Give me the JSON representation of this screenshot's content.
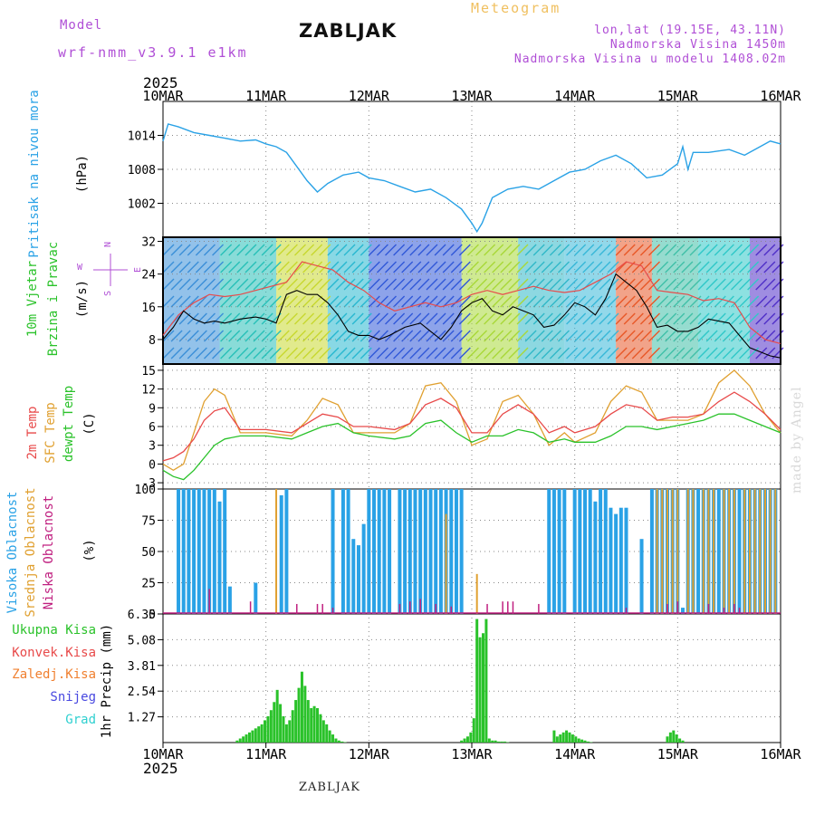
{
  "header": {
    "model_label": "Model",
    "model_name": "wrf-nmm_v3.9.1 e1km",
    "station": "ZABLJAK",
    "product": "Meteogram",
    "coords": "lon,lat (19.15E, 43.11N)",
    "elevation": "Nadmorska Visina 1450m",
    "model_elevation": "Nadmorska Visina u modelu 1408.02m"
  },
  "credit": "made by Angel",
  "footer_station": "ZABLJAK",
  "time_axis": {
    "year": "2025",
    "labels": [
      "10MAR",
      "11MAR",
      "12MAR",
      "13MAR",
      "14MAR",
      "15MAR",
      "16MAR"
    ]
  },
  "colors": {
    "pressure": "#2aa2e6",
    "wind_speed": "#000000",
    "wind_gust": "#e84a4a",
    "t2m": "#e84a4a",
    "tsfc": "#e0a030",
    "dewpt": "#2ac22a",
    "cloud_high": "#2aa2e6",
    "cloud_mid": "#e0a030",
    "cloud_low": "#c02080",
    "precip_total": "#2ac22a",
    "precip_conv": "#e84a4a",
    "precip_frz": "#f08030",
    "snow": "#4848e0",
    "hail": "#30d0d0",
    "legend_purple": "#b04fd6"
  },
  "chart_data": [
    {
      "type": "line",
      "title": "",
      "ylabel": [
        "Pritisak na nivou mora",
        "(hPa)"
      ],
      "yticks": [
        1002,
        1008,
        1014
      ],
      "ylim": [
        996,
        1020
      ],
      "grid": true,
      "series": [
        {
          "name": "Pritisak na nivou mora",
          "x": [
            0,
            0.05,
            0.15,
            0.3,
            0.45,
            0.6,
            0.75,
            0.9,
            1.0,
            1.1,
            1.2,
            1.3,
            1.4,
            1.5,
            1.6,
            1.75,
            1.9,
            2.0,
            2.15,
            2.3,
            2.45,
            2.6,
            2.75,
            2.9,
            3.0,
            3.05,
            3.1,
            3.2,
            3.35,
            3.5,
            3.65,
            3.8,
            3.95,
            4.1,
            4.25,
            4.4,
            4.55,
            4.7,
            4.85,
            5.0,
            5.05,
            5.1,
            5.15,
            5.3,
            5.5,
            5.65,
            5.8,
            5.9,
            6.0
          ],
          "values": [
            1013,
            1016,
            1015.5,
            1014.5,
            1014,
            1013.5,
            1013,
            1013.2,
            1012.5,
            1012,
            1011,
            1008.5,
            1006,
            1004,
            1005.5,
            1007,
            1007.5,
            1006.5,
            1006,
            1005,
            1004,
            1004.5,
            1003,
            1001,
            998.5,
            997,
            998.5,
            1003,
            1004.5,
            1005,
            1004.5,
            1006,
            1007.5,
            1008,
            1009.5,
            1010.5,
            1009,
            1006.5,
            1007,
            1009,
            1012,
            1008,
            1011,
            1011,
            1011.5,
            1010.5,
            1012,
            1013,
            1012.5
          ]
        }
      ]
    },
    {
      "type": "line",
      "title": "",
      "ylabel": [
        "10m Vjetar",
        "Brzina i Pravac",
        "(m/s)"
      ],
      "direction_legend": [
        "N",
        "W",
        "E",
        "S"
      ],
      "yticks": [
        8,
        16,
        24,
        32
      ],
      "ylim": [
        2,
        33
      ],
      "grid": true,
      "series": [
        {
          "name": "Brzina",
          "x": [
            0,
            0.1,
            0.2,
            0.3,
            0.4,
            0.5,
            0.6,
            0.75,
            0.9,
            1.0,
            1.1,
            1.2,
            1.3,
            1.4,
            1.5,
            1.6,
            1.7,
            1.8,
            1.9,
            2.0,
            2.1,
            2.2,
            2.35,
            2.5,
            2.6,
            2.7,
            2.8,
            2.9,
            3.0,
            3.1,
            3.2,
            3.3,
            3.4,
            3.5,
            3.6,
            3.7,
            3.8,
            3.9,
            4.0,
            4.1,
            4.2,
            4.3,
            4.4,
            4.5,
            4.6,
            4.7,
            4.8,
            4.9,
            5.0,
            5.1,
            5.2,
            5.3,
            5.4,
            5.5,
            5.6,
            5.7,
            5.8,
            5.9,
            6.0
          ],
          "values": [
            8,
            11,
            15,
            13,
            12,
            12.5,
            12,
            13,
            13.5,
            13,
            12,
            19,
            20,
            19,
            19,
            17,
            14,
            10,
            9,
            9,
            8,
            9,
            11,
            12,
            10,
            8,
            11,
            15,
            17,
            18,
            15,
            14,
            16,
            15,
            14,
            11,
            11.5,
            14,
            17,
            16,
            14,
            18,
            24,
            22,
            20,
            16,
            11,
            11.5,
            10,
            10,
            11,
            13,
            12.5,
            12,
            9,
            6,
            5,
            4,
            3.5
          ]
        },
        {
          "name": "Udari",
          "x": [
            0,
            0.15,
            0.3,
            0.45,
            0.6,
            0.75,
            0.9,
            1.05,
            1.2,
            1.35,
            1.5,
            1.65,
            1.8,
            1.95,
            2.1,
            2.25,
            2.4,
            2.55,
            2.7,
            2.85,
            3.0,
            3.15,
            3.3,
            3.45,
            3.6,
            3.75,
            3.9,
            4.05,
            4.2,
            4.35,
            4.5,
            4.65,
            4.8,
            4.95,
            5.1,
            5.25,
            5.4,
            5.55,
            5.7,
            5.85,
            6.0
          ],
          "values": [
            9,
            14,
            17,
            19,
            18.5,
            19,
            20,
            21,
            22,
            27,
            26,
            25,
            22,
            20,
            17,
            15,
            16,
            17,
            16,
            17,
            19,
            20,
            19,
            20,
            21,
            20,
            19.5,
            20,
            22,
            24,
            27,
            26,
            20,
            19.5,
            19,
            17.5,
            18,
            17,
            11,
            8,
            7
          ]
        }
      ]
    },
    {
      "type": "line",
      "title": "",
      "ylabel": [
        "2m Temp",
        "SFC Temp",
        "dewpt Temp",
        "(C)"
      ],
      "yticks": [
        -3,
        0,
        3,
        6,
        9,
        12,
        15
      ],
      "ylim": [
        -4,
        16
      ],
      "grid": true,
      "series": [
        {
          "name": "2m Temp",
          "x": [
            0,
            0.1,
            0.2,
            0.3,
            0.4,
            0.5,
            0.6,
            0.75,
            1.0,
            1.25,
            1.4,
            1.55,
            1.7,
            1.85,
            2.0,
            2.25,
            2.4,
            2.55,
            2.7,
            2.85,
            3.0,
            3.15,
            3.3,
            3.45,
            3.6,
            3.75,
            3.9,
            4.0,
            4.2,
            4.35,
            4.5,
            4.65,
            4.8,
            4.95,
            5.1,
            5.25,
            5.4,
            5.55,
            5.7,
            5.85,
            6.0
          ],
          "values": [
            0.5,
            1,
            2,
            4,
            7,
            8.5,
            9,
            5.5,
            5.5,
            5,
            6.5,
            8,
            7.5,
            6,
            6,
            5.5,
            6.5,
            9.5,
            10.5,
            9,
            5,
            5,
            8,
            9.5,
            8,
            5,
            6,
            5,
            6,
            8,
            9.5,
            9,
            7,
            7.5,
            7.5,
            8,
            10,
            11.5,
            10,
            8,
            5.5
          ]
        },
        {
          "name": "SFC Temp",
          "x": [
            0,
            0.1,
            0.2,
            0.3,
            0.4,
            0.5,
            0.6,
            0.75,
            1.0,
            1.25,
            1.4,
            1.55,
            1.7,
            1.85,
            2.0,
            2.25,
            2.4,
            2.55,
            2.7,
            2.85,
            3.0,
            3.15,
            3.3,
            3.45,
            3.6,
            3.75,
            3.9,
            4.0,
            4.2,
            4.35,
            4.5,
            4.65,
            4.8,
            4.95,
            5.1,
            5.25,
            5.4,
            5.55,
            5.7,
            5.85,
            6.0
          ],
          "values": [
            0,
            -1,
            0,
            5,
            10,
            12,
            11,
            5,
            5,
            4.5,
            7,
            10.5,
            9.5,
            5,
            5,
            5,
            6.5,
            12.5,
            13,
            10,
            3,
            4,
            10,
            11,
            8,
            3,
            5,
            3.5,
            5,
            10,
            12.5,
            11.5,
            7,
            7,
            7,
            8,
            13,
            15,
            12.5,
            8,
            5
          ]
        },
        {
          "name": "dewpt Temp",
          "x": [
            0,
            0.1,
            0.2,
            0.3,
            0.4,
            0.5,
            0.6,
            0.75,
            1.0,
            1.25,
            1.4,
            1.55,
            1.7,
            1.85,
            2.0,
            2.25,
            2.4,
            2.55,
            2.7,
            2.85,
            3.0,
            3.15,
            3.3,
            3.45,
            3.6,
            3.75,
            3.9,
            4.0,
            4.2,
            4.35,
            4.5,
            4.65,
            4.8,
            4.95,
            5.1,
            5.25,
            5.4,
            5.55,
            5.7,
            5.85,
            6.0
          ],
          "values": [
            -1,
            -2,
            -2.5,
            -1,
            1,
            3,
            4,
            4.5,
            4.5,
            4,
            5,
            6,
            6.5,
            5,
            4.5,
            4,
            4.5,
            6.5,
            7,
            5,
            3.5,
            4.5,
            4.5,
            5.5,
            5,
            3.5,
            4,
            3.5,
            3.5,
            4.5,
            6,
            6,
            5.5,
            6,
            6.5,
            7,
            8,
            8,
            7,
            6,
            5
          ]
        }
      ]
    },
    {
      "type": "bar",
      "title": "",
      "ylabel": [
        "Visoka Oblacnost",
        "Srednja Oblacnost",
        "Niska Oblacnost",
        "(%)"
      ],
      "yticks": [
        0,
        25,
        50,
        75,
        100
      ],
      "ylim": [
        0,
        100
      ],
      "grid": true,
      "series": [
        {
          "name": "Visoka Oblacnost",
          "x": [
            0.15,
            0.2,
            0.25,
            0.3,
            0.35,
            0.4,
            0.45,
            0.5,
            0.55,
            0.6,
            0.65,
            0.9,
            1.15,
            1.2,
            1.65,
            1.75,
            1.8,
            1.85,
            1.9,
            1.95,
            2.0,
            2.05,
            2.1,
            2.15,
            2.2,
            2.3,
            2.35,
            2.4,
            2.45,
            2.5,
            2.55,
            2.6,
            2.65,
            2.7,
            2.75,
            2.8,
            2.85,
            2.9,
            3.75,
            3.8,
            3.85,
            3.9,
            4.0,
            4.05,
            4.1,
            4.15,
            4.2,
            4.25,
            4.3,
            4.35,
            4.4,
            4.45,
            4.5,
            4.65,
            4.75,
            4.8,
            4.85,
            4.9,
            4.95,
            5.0,
            5.05,
            5.1,
            5.15,
            5.2,
            5.25,
            5.3,
            5.35,
            5.4,
            5.45,
            5.5,
            5.55,
            5.6,
            5.65,
            5.7,
            5.75,
            5.8,
            5.85,
            5.9,
            5.95
          ],
          "values": [
            100,
            100,
            100,
            100,
            100,
            100,
            100,
            100,
            90,
            100,
            22,
            25,
            95,
            100,
            100,
            100,
            100,
            60,
            55,
            72,
            100,
            100,
            100,
            100,
            100,
            100,
            100,
            100,
            100,
            100,
            100,
            100,
            100,
            100,
            100,
            100,
            100,
            100,
            100,
            100,
            100,
            100,
            100,
            100,
            100,
            100,
            90,
            100,
            100,
            85,
            80,
            85,
            85,
            60,
            100,
            100,
            100,
            100,
            100,
            100,
            5,
            100,
            100,
            100,
            100,
            100,
            100,
            100,
            100,
            100,
            100,
            100,
            100,
            100,
            100,
            100,
            100,
            100,
            100
          ]
        },
        {
          "name": "Srednja Oblacnost",
          "x": [
            1.1,
            2.75,
            3.05,
            4.8,
            4.85,
            4.9,
            4.95,
            5.0,
            5.1,
            5.15,
            5.25,
            5.3,
            5.35,
            5.45,
            5.5,
            5.55,
            5.65,
            5.7,
            5.75,
            5.8,
            5.85,
            5.9,
            5.95
          ],
          "values": [
            100,
            80,
            32,
            100,
            100,
            100,
            100,
            100,
            100,
            100,
            100,
            100,
            100,
            100,
            100,
            100,
            100,
            100,
            100,
            100,
            100,
            100,
            100
          ]
        },
        {
          "name": "Niska Oblacnost",
          "x": [
            0.45,
            0.85,
            1.3,
            1.5,
            1.55,
            1.65,
            2.3,
            2.4,
            2.5,
            2.65,
            2.8,
            3.15,
            3.3,
            3.35,
            3.4,
            3.65,
            4.5,
            4.9,
            5.0,
            5.3,
            5.45,
            5.55,
            5.6
          ],
          "values": [
            20,
            10,
            8,
            8,
            8,
            5,
            8,
            10,
            12,
            8,
            6,
            8,
            10,
            10,
            10,
            8,
            5,
            8,
            10,
            8,
            5,
            8,
            5
          ]
        }
      ]
    },
    {
      "type": "bar",
      "title": "",
      "ylabel": [
        "1hr Precip (mm)"
      ],
      "legend": [
        "Ukupna Kisa",
        "Konvek.Kisa",
        "Zaledj.Kisa",
        "Snijeg",
        "Grad"
      ],
      "yticks": [
        1.27,
        2.54,
        3.81,
        5.08,
        6.35
      ],
      "ytick_labels": [
        "1.27",
        "2.54",
        "3.81",
        "5.08",
        "6.35"
      ],
      "ylim": [
        0,
        6.35
      ],
      "grid": true,
      "series": [
        {
          "name": "Ukupna Kisa",
          "x": [
            0.72,
            0.75,
            0.78,
            0.81,
            0.84,
            0.87,
            0.9,
            0.93,
            0.96,
            0.99,
            1.02,
            1.05,
            1.08,
            1.11,
            1.14,
            1.17,
            1.2,
            1.23,
            1.26,
            1.29,
            1.32,
            1.35,
            1.38,
            1.41,
            1.44,
            1.47,
            1.5,
            1.53,
            1.56,
            1.59,
            1.62,
            1.65,
            1.68,
            1.71,
            1.74,
            1.77,
            2.9,
            2.93,
            2.96,
            2.99,
            3.02,
            3.05,
            3.08,
            3.11,
            3.14,
            3.17,
            3.2,
            3.23,
            3.26,
            3.29,
            3.32,
            3.35,
            3.8,
            3.83,
            3.86,
            3.89,
            3.92,
            3.95,
            3.98,
            4.01,
            4.04,
            4.07,
            4.1,
            4.13,
            4.16,
            4.9,
            4.93,
            4.96,
            4.99,
            5.02,
            5.05
          ],
          "values": [
            0.1,
            0.2,
            0.3,
            0.4,
            0.5,
            0.6,
            0.7,
            0.8,
            0.9,
            1.1,
            1.3,
            1.6,
            2.0,
            2.6,
            1.9,
            1.3,
            0.9,
            1.1,
            1.6,
            2.1,
            2.7,
            3.5,
            2.8,
            2.1,
            1.7,
            1.8,
            1.7,
            1.4,
            1.1,
            0.9,
            0.6,
            0.4,
            0.2,
            0.1,
            0.05,
            0.02,
            0.1,
            0.2,
            0.3,
            0.5,
            1.2,
            6.1,
            5.2,
            5.4,
            6.1,
            0.2,
            0.1,
            0.1,
            0.05,
            0.05,
            0.05,
            0.02,
            0.6,
            0.3,
            0.4,
            0.5,
            0.6,
            0.5,
            0.4,
            0.3,
            0.2,
            0.15,
            0.1,
            0.05,
            0.02,
            0.3,
            0.5,
            0.6,
            0.4,
            0.2,
            0.1
          ]
        }
      ]
    }
  ]
}
